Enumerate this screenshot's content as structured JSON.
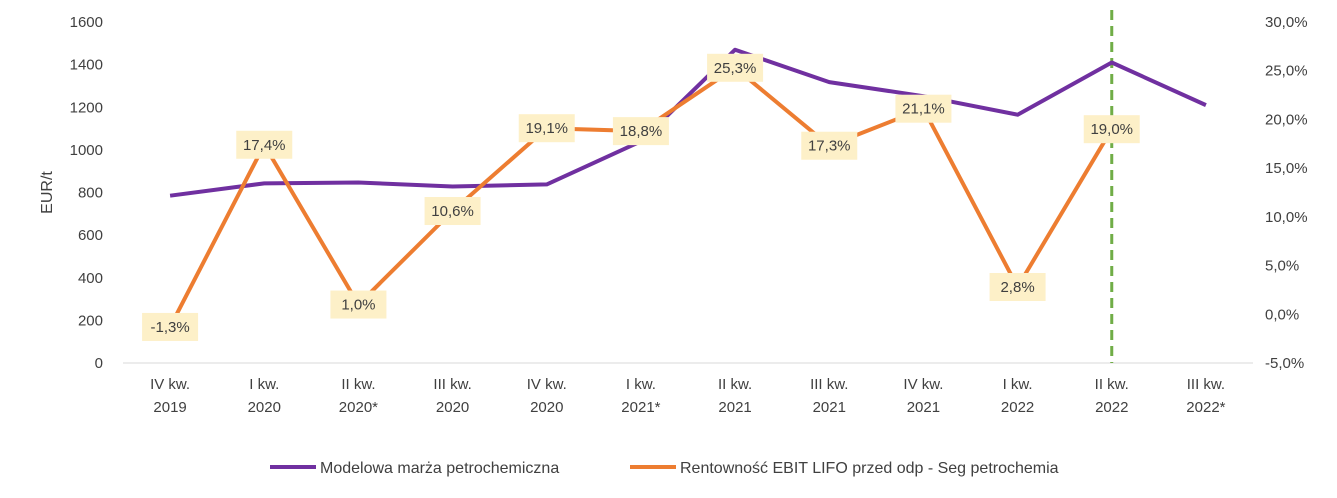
{
  "chart_data": {
    "type": "line",
    "title": "",
    "categories": [
      [
        "IV kw.",
        "2019"
      ],
      [
        "I kw.",
        "2020"
      ],
      [
        "II kw.",
        "2020*"
      ],
      [
        "III kw.",
        "2020"
      ],
      [
        "IV kw.",
        "2020"
      ],
      [
        "I kw.",
        "2021*"
      ],
      [
        "II kw.",
        "2021"
      ],
      [
        "III kw.",
        "2021"
      ],
      [
        "IV kw.",
        "2021"
      ],
      [
        "I kw.",
        "2022"
      ],
      [
        "II kw.",
        "2022"
      ],
      [
        "III kw.",
        "2022*"
      ]
    ],
    "ylabel": "EUR/t",
    "ylim": [
      0,
      1600
    ],
    "yticks": [
      "0",
      "200",
      "400",
      "600",
      "800",
      "1000",
      "1200",
      "1400",
      "1600"
    ],
    "y2lim": [
      -5.0,
      30.0
    ],
    "y2ticks": [
      "-5,0%",
      "0,0%",
      "5,0%",
      "10,0%",
      "15,0%",
      "20,0%",
      "25,0%",
      "30,0%"
    ],
    "grid": false,
    "legend_position": "bottom",
    "series": [
      {
        "name": "Modelowa marża petrochemiczna",
        "axis": "left",
        "color": "#7030a0",
        "values": [
          785,
          843,
          847,
          828,
          838,
          1040,
          1470,
          1318,
          1252,
          1165,
          1410,
          1210
        ]
      },
      {
        "name": "Rentowność EBIT LIFO przed odp - Seg petrochemia",
        "axis": "right",
        "color": "#ed7d31",
        "values": [
          -1.3,
          17.4,
          1.0,
          10.6,
          19.1,
          18.8,
          25.3,
          17.3,
          21.1,
          2.8,
          19.0,
          null
        ],
        "labels": [
          "-1,3%",
          "17,4%",
          "1,0%",
          "10,6%",
          "19,1%",
          "18,8%",
          "25,3%",
          "17,3%",
          "21,1%",
          "2,8%",
          "19,0%",
          ""
        ]
      }
    ],
    "marker_line": {
      "category_index": 10,
      "color": "#70ad47",
      "style": "dashed"
    },
    "label_box_color": "#fdf0c8"
  }
}
